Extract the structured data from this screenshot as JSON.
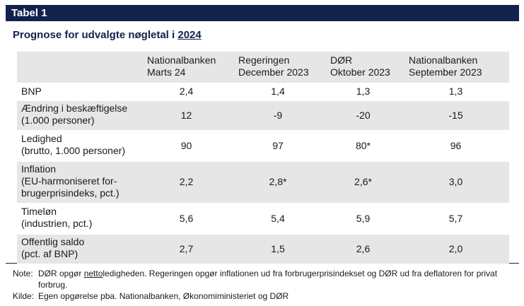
{
  "header": {
    "label": "Tabel 1"
  },
  "subtitle": {
    "text": "Prognose for udvalgte nøgletal i ",
    "year": "2024"
  },
  "table": {
    "columns": [
      {
        "line1": "Nationalbanken",
        "line2": "Marts 24"
      },
      {
        "line1": "Regeringen",
        "line2": "December 2023"
      },
      {
        "line1": "DØR",
        "line2": "Oktober 2023"
      },
      {
        "line1": "Nationalbanken",
        "line2": "September 2023"
      }
    ],
    "rows": [
      {
        "label": [
          "BNP"
        ],
        "values": [
          "2,4",
          "1,4",
          "1,3",
          "1,3"
        ]
      },
      {
        "label": [
          "Ændring i beskæftigelse",
          "(1.000 personer)"
        ],
        "values": [
          "12",
          "-9",
          "-20",
          "-15"
        ]
      },
      {
        "label": [
          "Ledighed",
          "(brutto, 1.000 personer)"
        ],
        "values": [
          "90",
          "97",
          "80*",
          "96"
        ]
      },
      {
        "label": [
          "Inflation",
          "(EU-harmoniseret for-",
          "brugerprisindeks, pct.)"
        ],
        "values": [
          "2,2",
          "2,8*",
          "2,6*",
          "3,0"
        ]
      },
      {
        "label": [
          "Timeløn",
          "(industrien, pct.)"
        ],
        "values": [
          "5,6",
          "5,4",
          "5,9",
          "5,7"
        ]
      },
      {
        "label": [
          "Offentlig saldo",
          "(pct. af BNP)"
        ],
        "values": [
          "2,7",
          "1,5",
          "2,6",
          "2,0"
        ]
      }
    ]
  },
  "notes": {
    "note_key": "Note:",
    "note_pre": "DØR opgør ",
    "note_underlined": "netto",
    "note_post": "ledigheden. Regeringen opgør inflationen ud fra forbrugerprisindekset og DØR ud fra deflatoren for privat forbrug.",
    "source_key": "Kilde:",
    "source_text": "Egen opgørelse pba. Nationalbanken, Økonomiministeriet og DØR"
  }
}
